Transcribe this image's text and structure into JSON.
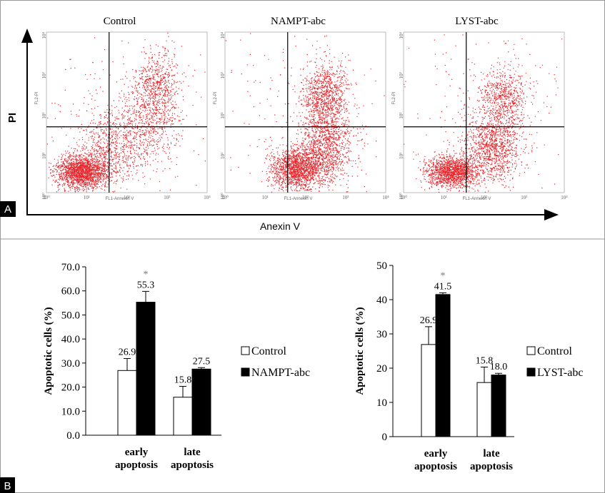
{
  "figure": {
    "panel_labels": [
      "A",
      "B"
    ]
  },
  "flow": {
    "x_label": "Anexin V",
    "y_label": "PI",
    "tick_labels": [
      "10⁰",
      "10¹",
      "10²",
      "10³",
      "10⁴"
    ],
    "plots": [
      {
        "title": "Control",
        "x_axis_label": "FL1-Annexin V",
        "y_axis_label": "FL2-PI"
      },
      {
        "title": "NAMPT-abc",
        "x_axis_label": "FL1-Annexin V",
        "y_axis_label": "FL2-PI"
      },
      {
        "title": "LYST-abc",
        "x_axis_label": "FL1-Annexin V",
        "y_axis_label": "FL2-PI"
      }
    ]
  },
  "chart_data": [
    {
      "type": "bar",
      "y_label": "Apoptotic cells (%)",
      "categories": [
        "early apoptosis",
        "late apoptosis"
      ],
      "series": [
        {
          "name": "Control",
          "color": "#ffffff",
          "values": [
            26.9,
            15.8
          ],
          "errors": [
            5,
            4.5
          ]
        },
        {
          "name": "NAMPT-abc",
          "color": "#000000",
          "values": [
            55.3,
            27.5
          ],
          "errors": [
            4.5,
            0.6
          ]
        }
      ],
      "ylim": [
        0,
        70
      ],
      "yticks": [
        {
          "value": 0,
          "label": "0.0"
        },
        {
          "value": 10,
          "label": "10.0"
        },
        {
          "value": 20,
          "label": "20.0"
        },
        {
          "value": 30,
          "label": "30.0"
        },
        {
          "value": 40,
          "label": "40.0"
        },
        {
          "value": 50,
          "label": "50.0"
        },
        {
          "value": 60,
          "label": "60.0"
        },
        {
          "value": 70,
          "label": "70.0"
        }
      ],
      "annotations": [
        "*"
      ]
    },
    {
      "type": "bar",
      "y_label": "Apoptotic cells (%)",
      "categories": [
        "early apoptosis",
        "late apoptosis"
      ],
      "series": [
        {
          "name": "Control",
          "color": "#ffffff",
          "values": [
            26.9,
            15.8
          ],
          "errors": [
            5.2,
            4.5
          ]
        },
        {
          "name": "LYST-abc",
          "color": "#000000",
          "values": [
            41.5,
            18.0
          ],
          "value_labels": [
            "41.5",
            "18.0"
          ],
          "errors": [
            0.5,
            0.5
          ]
        }
      ],
      "ylim": [
        0,
        50
      ],
      "yticks": [
        0,
        10,
        20,
        30,
        40,
        50
      ],
      "annotations": [
        "*"
      ]
    }
  ]
}
